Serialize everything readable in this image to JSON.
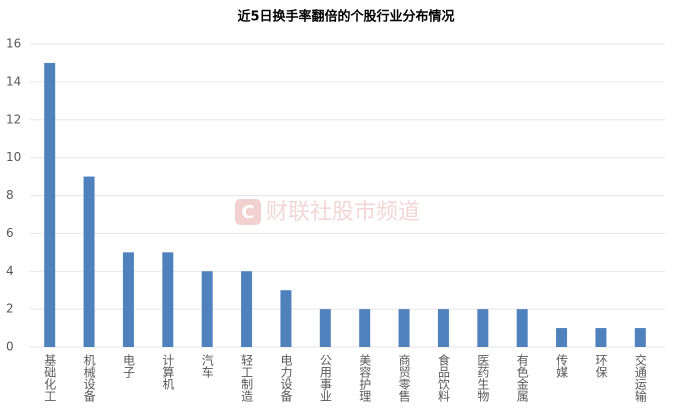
{
  "chart_data": {
    "type": "bar",
    "title": "近5日换手率翻倍的个股行业分布情况",
    "watermark": "财联社股市频道",
    "categories": [
      "基础化工",
      "机械设备",
      "电子",
      "计算机",
      "汽车",
      "轻工制造",
      "电力设备",
      "公用事业",
      "美容护理",
      "商贸零售",
      "食品饮料",
      "医药生物",
      "有色金属",
      "传媒",
      "环保",
      "交通运输"
    ],
    "values": [
      15,
      9,
      5,
      5,
      4,
      4,
      3,
      2,
      2,
      2,
      2,
      2,
      2,
      1,
      1,
      1
    ],
    "color": "#4f81bd",
    "ylim": [
      0,
      16
    ],
    "yticks": [
      0,
      2,
      4,
      6,
      8,
      10,
      12,
      14,
      16
    ],
    "grid": true
  }
}
